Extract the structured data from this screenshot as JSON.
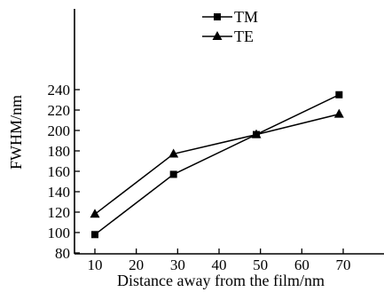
{
  "chart_data": {
    "type": "line",
    "title": "",
    "xlabel": "Distance away from the film/nm",
    "ylabel": "FWHM/nm",
    "xlim": [
      5,
      72
    ],
    "ylim": [
      80,
      245
    ],
    "x_ticks": [
      10,
      20,
      30,
      40,
      50,
      60,
      70
    ],
    "y_ticks": [
      80,
      100,
      120,
      140,
      160,
      180,
      200,
      220,
      240
    ],
    "grid": false,
    "legend_position": "top-center",
    "series": [
      {
        "name": "TM",
        "marker": "square",
        "color": "#000000",
        "x": [
          10,
          29,
          49,
          69
        ],
        "y": [
          98,
          157,
          196,
          235
        ]
      },
      {
        "name": "TE",
        "marker": "triangle",
        "color": "#000000",
        "x": [
          10,
          29,
          49,
          69
        ],
        "y": [
          118,
          177,
          196,
          216
        ]
      }
    ]
  }
}
